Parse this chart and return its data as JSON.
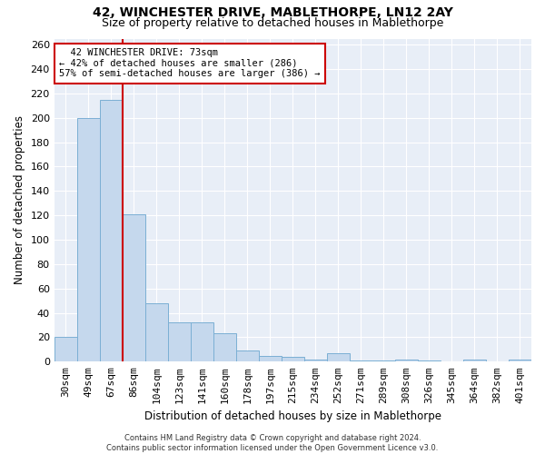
{
  "title": "42, WINCHESTER DRIVE, MABLETHORPE, LN12 2AY",
  "subtitle": "Size of property relative to detached houses in Mablethorpe",
  "xlabel": "Distribution of detached houses by size in Mablethorpe",
  "ylabel": "Number of detached properties",
  "categories": [
    "30sqm",
    "49sqm",
    "67sqm",
    "86sqm",
    "104sqm",
    "123sqm",
    "141sqm",
    "160sqm",
    "178sqm",
    "197sqm",
    "215sqm",
    "234sqm",
    "252sqm",
    "271sqm",
    "289sqm",
    "308sqm",
    "326sqm",
    "345sqm",
    "364sqm",
    "382sqm",
    "401sqm"
  ],
  "values": [
    20,
    200,
    215,
    121,
    48,
    32,
    32,
    23,
    9,
    5,
    4,
    2,
    7,
    1,
    1,
    2,
    1,
    0,
    2,
    0,
    2
  ],
  "bar_color": "#c5d8ed",
  "bar_edge_color": "#7bafd4",
  "vline_x_index": 2,
  "vline_color": "#cc0000",
  "annotation_line1": "  42 WINCHESTER DRIVE: 73sqm",
  "annotation_line2": "← 42% of detached houses are smaller (286)",
  "annotation_line3": "57% of semi-detached houses are larger (386) →",
  "annotation_box_color": "#ffffff",
  "annotation_box_edge_color": "#cc0000",
  "ylim": [
    0,
    265
  ],
  "yticks": [
    0,
    20,
    40,
    60,
    80,
    100,
    120,
    140,
    160,
    180,
    200,
    220,
    240,
    260
  ],
  "bg_color": "#e8eef7",
  "grid_color": "#ffffff",
  "footer": "Contains HM Land Registry data © Crown copyright and database right 2024.\nContains public sector information licensed under the Open Government Licence v3.0.",
  "title_fontsize": 10,
  "subtitle_fontsize": 9,
  "xlabel_fontsize": 8.5,
  "ylabel_fontsize": 8.5,
  "tick_fontsize": 8,
  "annotation_fontsize": 7.5,
  "footer_fontsize": 6
}
